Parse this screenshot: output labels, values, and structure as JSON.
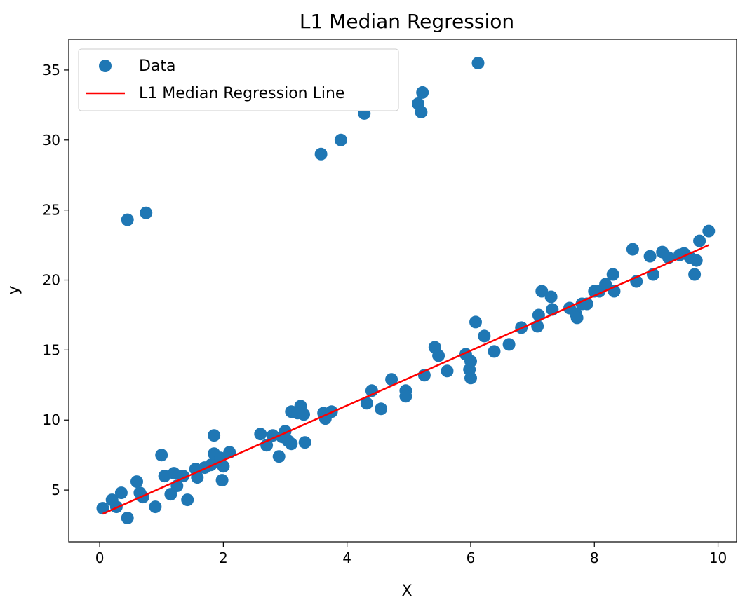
{
  "chart_data": {
    "type": "scatter",
    "title": "L1 Median Regression",
    "xlabel": "X",
    "ylabel": "y",
    "xlim": [
      -0.5,
      10.3
    ],
    "ylim": [
      1.3,
      37.2
    ],
    "xticks": [
      "0",
      "2",
      "4",
      "6",
      "8",
      "10"
    ],
    "xtick_values": [
      0,
      2,
      4,
      6,
      8,
      10
    ],
    "yticks": [
      "5",
      "10",
      "15",
      "20",
      "25",
      "30",
      "35"
    ],
    "ytick_values": [
      5,
      10,
      15,
      20,
      25,
      30,
      35
    ],
    "grid": false,
    "legend": {
      "placement": "top-left",
      "entries": [
        "Data",
        "L1 Median Regression Line"
      ]
    },
    "series": [
      {
        "name": "Data",
        "kind": "scatter",
        "color": "#1f77b4",
        "points": [
          [
            0.05,
            3.7
          ],
          [
            0.2,
            4.3
          ],
          [
            0.27,
            3.8
          ],
          [
            0.35,
            4.8
          ],
          [
            0.45,
            3.0
          ],
          [
            0.45,
            24.3
          ],
          [
            0.6,
            5.6
          ],
          [
            0.65,
            4.8
          ],
          [
            0.7,
            4.5
          ],
          [
            0.75,
            24.8
          ],
          [
            0.9,
            3.8
          ],
          [
            1.0,
            7.5
          ],
          [
            1.05,
            6.0
          ],
          [
            1.15,
            4.7
          ],
          [
            1.2,
            6.2
          ],
          [
            1.25,
            5.3
          ],
          [
            1.35,
            6.0
          ],
          [
            1.42,
            4.3
          ],
          [
            1.55,
            6.5
          ],
          [
            1.58,
            5.9
          ],
          [
            1.7,
            6.6
          ],
          [
            1.8,
            6.8
          ],
          [
            1.85,
            8.9
          ],
          [
            1.85,
            7.6
          ],
          [
            1.95,
            7.3
          ],
          [
            1.98,
            5.7
          ],
          [
            2.0,
            6.7
          ],
          [
            2.1,
            7.7
          ],
          [
            2.6,
            9.0
          ],
          [
            2.7,
            8.2
          ],
          [
            2.8,
            8.9
          ],
          [
            2.9,
            7.4
          ],
          [
            2.95,
            8.8
          ],
          [
            3.0,
            9.2
          ],
          [
            3.05,
            8.5
          ],
          [
            3.1,
            8.3
          ],
          [
            3.1,
            10.6
          ],
          [
            3.2,
            10.5
          ],
          [
            3.25,
            11.0
          ],
          [
            3.3,
            10.4
          ],
          [
            3.32,
            8.4
          ],
          [
            3.58,
            29.0
          ],
          [
            3.62,
            10.5
          ],
          [
            3.65,
            10.1
          ],
          [
            3.75,
            10.6
          ],
          [
            3.9,
            30.0
          ],
          [
            4.28,
            31.9
          ],
          [
            4.32,
            11.2
          ],
          [
            4.4,
            12.1
          ],
          [
            4.55,
            10.8
          ],
          [
            4.72,
            12.9
          ],
          [
            4.95,
            12.1
          ],
          [
            4.95,
            11.7
          ],
          [
            5.15,
            32.6
          ],
          [
            5.2,
            32.0
          ],
          [
            5.22,
            33.4
          ],
          [
            5.25,
            13.2
          ],
          [
            5.42,
            15.2
          ],
          [
            5.48,
            14.6
          ],
          [
            5.62,
            13.5
          ],
          [
            5.92,
            14.7
          ],
          [
            5.98,
            13.6
          ],
          [
            6.0,
            13.0
          ],
          [
            6.0,
            14.2
          ],
          [
            6.08,
            17.0
          ],
          [
            6.12,
            35.5
          ],
          [
            6.22,
            16.0
          ],
          [
            6.38,
            14.9
          ],
          [
            6.62,
            15.4
          ],
          [
            6.82,
            16.6
          ],
          [
            7.08,
            16.7
          ],
          [
            7.1,
            17.5
          ],
          [
            7.15,
            19.2
          ],
          [
            7.3,
            18.8
          ],
          [
            7.32,
            17.9
          ],
          [
            7.6,
            18.0
          ],
          [
            7.7,
            17.6
          ],
          [
            7.72,
            17.3
          ],
          [
            7.8,
            18.3
          ],
          [
            7.88,
            18.3
          ],
          [
            8.0,
            19.2
          ],
          [
            8.08,
            19.2
          ],
          [
            8.18,
            19.7
          ],
          [
            8.3,
            20.4
          ],
          [
            8.32,
            19.2
          ],
          [
            8.62,
            22.2
          ],
          [
            8.68,
            19.9
          ],
          [
            8.9,
            21.7
          ],
          [
            8.95,
            20.4
          ],
          [
            9.1,
            22.0
          ],
          [
            9.2,
            21.6
          ],
          [
            9.38,
            21.8
          ],
          [
            9.45,
            21.9
          ],
          [
            9.55,
            21.6
          ],
          [
            9.62,
            20.4
          ],
          [
            9.65,
            21.4
          ],
          [
            9.7,
            22.8
          ],
          [
            9.85,
            23.5
          ]
        ]
      },
      {
        "name": "L1 Median Regression Line",
        "kind": "line",
        "color": "#ff0000",
        "points": [
          [
            0.05,
            3.3
          ],
          [
            9.85,
            22.5
          ]
        ]
      }
    ]
  }
}
